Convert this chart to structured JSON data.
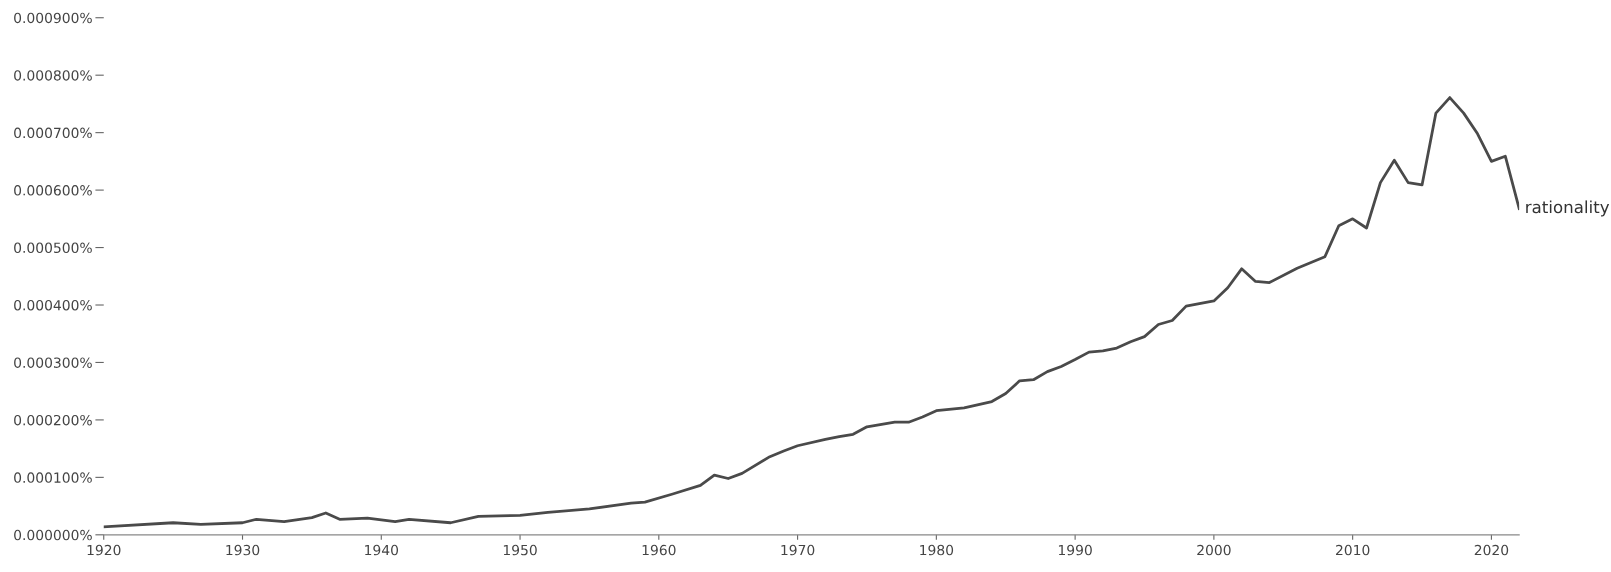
{
  "chart_data": {
    "type": "line",
    "x": [
      1920,
      1925,
      1927,
      1930,
      1931,
      1933,
      1935,
      1936,
      1937,
      1939,
      1941,
      1942,
      1945,
      1947,
      1950,
      1952,
      1955,
      1958,
      1959,
      1961,
      1963,
      1964,
      1965,
      1966,
      1968,
      1969,
      1970,
      1972,
      1973,
      1974,
      1975,
      1977,
      1978,
      1979,
      1980,
      1982,
      1984,
      1985,
      1986,
      1987,
      1988,
      1989,
      1990,
      1991,
      1992,
      1993,
      1994,
      1995,
      1996,
      1997,
      1998,
      2000,
      2001,
      2002,
      2003,
      2004,
      2006,
      2008,
      2009,
      2010,
      2011,
      2012,
      2013,
      2014,
      2015,
      2016,
      2017,
      2018,
      2019,
      2020,
      2021,
      2022
    ],
    "series": [
      {
        "name": "rationality",
        "color": "#4a4a4a",
        "values": [
          1.4e-05,
          2.1e-05,
          1.8e-05,
          2.1e-05,
          2.7e-05,
          2.3e-05,
          3e-05,
          3.8e-05,
          2.7e-05,
          2.9e-05,
          2.3e-05,
          2.7e-05,
          2.1e-05,
          3.2e-05,
          3.4e-05,
          3.9e-05,
          4.5e-05,
          5.5e-05,
          5.7e-05,
          7.1e-05,
          8.6e-05,
          0.000104,
          9.8e-05,
          0.000107,
          0.000136,
          0.000146,
          0.000155,
          0.000166,
          0.000171,
          0.000175,
          0.000188,
          0.000196,
          0.000196,
          0.000205,
          0.000216,
          0.000221,
          0.000232,
          0.000246,
          0.000268,
          0.00027,
          0.000284,
          0.000293,
          0.000305,
          0.000318,
          0.00032,
          0.000325,
          0.000336,
          0.000345,
          0.000366,
          0.000373,
          0.000398,
          0.000407,
          0.00043,
          0.000463,
          0.000441,
          0.000439,
          0.000464,
          0.000484,
          0.000538,
          0.00055,
          0.000534,
          0.000613,
          0.000652,
          0.000613,
          0.000609,
          0.000734,
          0.000761,
          0.000734,
          0.000698,
          0.00065,
          0.000659,
          0.000568
        ]
      }
    ],
    "xlim": [
      1920,
      2022
    ],
    "xticks": [
      1920,
      1930,
      1940,
      1950,
      1960,
      1970,
      1980,
      1990,
      2000,
      2010,
      2020
    ],
    "ylim": [
      0,
      0.0009
    ],
    "yticks": [
      {
        "value": 0,
        "label": "0.000000%"
      },
      {
        "value": 0.0001,
        "label": "0.000100%"
      },
      {
        "value": 0.0002,
        "label": "0.000200%"
      },
      {
        "value": 0.0003,
        "label": "0.000300%"
      },
      {
        "value": 0.0004,
        "label": "0.000400%"
      },
      {
        "value": 0.0005,
        "label": "0.000500%"
      },
      {
        "value": 0.0006,
        "label": "0.000600%"
      },
      {
        "value": 0.0007,
        "label": "0.000700%"
      },
      {
        "value": 0.0008,
        "label": "0.000800%"
      },
      {
        "value": 0.0009,
        "label": "0.000900%"
      }
    ],
    "grid": false,
    "legend": false,
    "marker": "none",
    "line_style": "solid"
  }
}
